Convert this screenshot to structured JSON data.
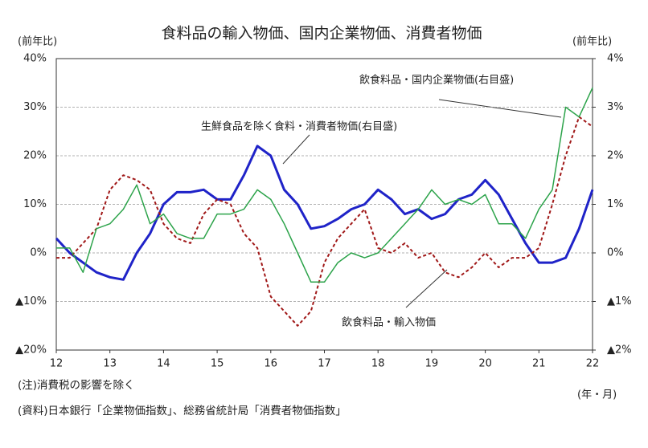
{
  "chart_data": {
    "type": "line",
    "title": "食料品の輸入物価、国内企業物価、消費者物価",
    "y_label": "(前年比)",
    "y2_label": "(前年比)",
    "x_label": "(年・月)",
    "notes": [
      "(注)消費税の影響を除く",
      "(資料)日本銀行「企業物価指数」、総務省統計局「消費者物価指数」"
    ],
    "xlim": [
      12,
      22
    ],
    "xticks": [
      12,
      13,
      14,
      15,
      16,
      17,
      18,
      19,
      20,
      21,
      22
    ],
    "ylim": [
      -20,
      40
    ],
    "yticks": [
      {
        "value": 40,
        "label": "40%"
      },
      {
        "value": 30,
        "label": "30%"
      },
      {
        "value": 20,
        "label": "20%"
      },
      {
        "value": 10,
        "label": "10%"
      },
      {
        "value": 0,
        "label": "0%"
      },
      {
        "value": -10,
        "label": "▲10%"
      },
      {
        "value": -20,
        "label": "▲20%"
      }
    ],
    "y2lim": [
      -2,
      4
    ],
    "y2ticks": [
      {
        "value": 4,
        "label": "4%"
      },
      {
        "value": 3,
        "label": "3%"
      },
      {
        "value": 2,
        "label": "2%"
      },
      {
        "value": 1,
        "label": "1%"
      },
      {
        "value": 0,
        "label": "0%"
      },
      {
        "value": -1,
        "label": "▲1%"
      },
      {
        "value": -2,
        "label": "▲2%"
      }
    ],
    "grid": true,
    "x": [
      12,
      12.25,
      12.5,
      12.75,
      13,
      13.25,
      13.5,
      13.75,
      14,
      14.25,
      14.5,
      14.75,
      15,
      15.25,
      15.5,
      15.75,
      16,
      16.25,
      16.5,
      16.75,
      17,
      17.25,
      17.5,
      17.75,
      18,
      18.25,
      18.5,
      18.75,
      19,
      19.25,
      19.5,
      19.75,
      20,
      20.25,
      20.5,
      20.75,
      21,
      21.25,
      21.5,
      21.75,
      22
    ],
    "series": [
      {
        "name": "飲食料品・輸入物価",
        "color": "#1f23c8",
        "style": "solid",
        "width": 3,
        "values": [
          3,
          0,
          -2,
          -4,
          -5,
          -5.5,
          0,
          4,
          10,
          12.5,
          12.5,
          13,
          11,
          11,
          16,
          22,
          20,
          13,
          10,
          5,
          5.5,
          7,
          9,
          10,
          13,
          11,
          8,
          9,
          7,
          8,
          11,
          12,
          15,
          12,
          7,
          2,
          -2,
          -2,
          -1,
          5,
          13
        ]
      },
      {
        "name": "生鮮食品を除く食料・消費者物価(右目盛)",
        "color": "#a01818",
        "style": "dashed",
        "width": 2,
        "axis": "y2",
        "values": [
          -0.1,
          -0.1,
          0.2,
          0.5,
          1.3,
          1.6,
          1.5,
          1.3,
          0.6,
          0.3,
          0.2,
          0.8,
          1.1,
          1.0,
          0.4,
          0.1,
          -0.9,
          -1.2,
          -1.5,
          -1.2,
          -0.2,
          0.3,
          0.6,
          0.9,
          0.1,
          0.0,
          0.2,
          -0.1,
          0.0,
          -0.4,
          -0.5,
          -0.3,
          0.0,
          -0.3,
          -0.1,
          -0.1,
          0.1,
          1.0,
          2.0,
          2.8,
          2.6
        ]
      },
      {
        "name": "飲食料品・国内企業物価(右目盛)",
        "color": "#2ca34a",
        "style": "solid",
        "width": 1.5,
        "axis": "y2",
        "values": [
          0.1,
          0.1,
          -0.4,
          0.5,
          0.6,
          0.9,
          1.4,
          0.6,
          0.8,
          0.4,
          0.3,
          0.3,
          0.8,
          0.8,
          0.9,
          1.3,
          1.1,
          0.6,
          0.0,
          -0.6,
          -0.6,
          -0.2,
          0.0,
          -0.1,
          0.0,
          0.3,
          0.6,
          0.9,
          1.3,
          1.0,
          1.1,
          1.0,
          1.2,
          0.6,
          0.6,
          0.3,
          0.9,
          1.3,
          3.0,
          2.8,
          3.4
        ]
      }
    ]
  }
}
